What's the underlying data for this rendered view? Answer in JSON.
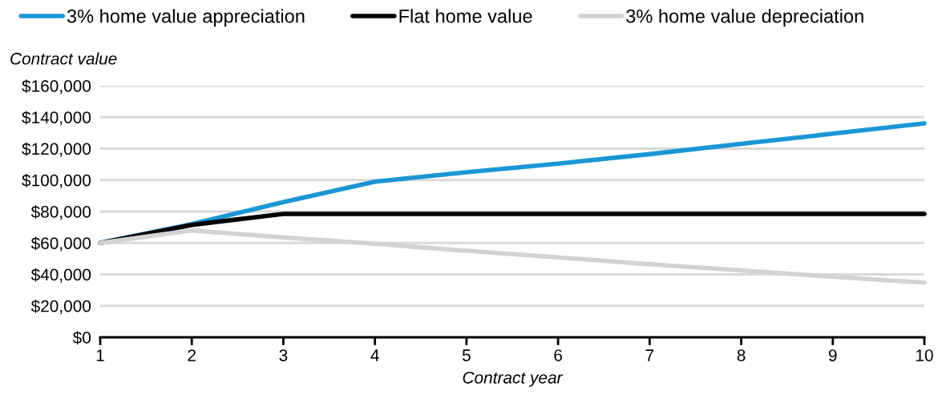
{
  "chart_data": {
    "type": "line",
    "xlabel": "Contract year",
    "ylabel": "Contract value",
    "x": [
      1,
      2,
      3,
      4,
      5,
      6,
      7,
      8,
      9,
      10
    ],
    "series": [
      {
        "name": "3% home value appreciation",
        "color": "#1a96d4",
        "values": [
          60000,
          72000,
          86000,
          99000,
          105000,
          110500,
          116500,
          123000,
          129500,
          136000
        ]
      },
      {
        "name": "Flat home value",
        "color": "#000000",
        "values": [
          60000,
          71500,
          78500,
          78500,
          78500,
          78500,
          78500,
          78500,
          78500,
          78500
        ]
      },
      {
        "name": "3% home value depreciation",
        "color": "#d3d3d3",
        "values": [
          60000,
          68000,
          63500,
          59500,
          55000,
          50800,
          46500,
          42500,
          38500,
          34800
        ]
      }
    ],
    "xlim": [
      1,
      10
    ],
    "xticks": [
      1,
      2,
      3,
      4,
      5,
      6,
      7,
      8,
      9,
      10
    ],
    "ylim": [
      0,
      160000
    ],
    "yticks": [
      {
        "value": 0,
        "label": "$0"
      },
      {
        "value": 20000,
        "label": "$20,000"
      },
      {
        "value": 40000,
        "label": "$40,000"
      },
      {
        "value": 60000,
        "label": "$60,000"
      },
      {
        "value": 80000,
        "label": "$80,000"
      },
      {
        "value": 100000,
        "label": "$100,000"
      },
      {
        "value": 120000,
        "label": "$120,000"
      },
      {
        "value": 140000,
        "label": "$140,000"
      },
      {
        "value": 160000,
        "label": "$160,000"
      }
    ],
    "grid": "y",
    "legend": "top",
    "marker": "none",
    "line_style": "solid"
  }
}
